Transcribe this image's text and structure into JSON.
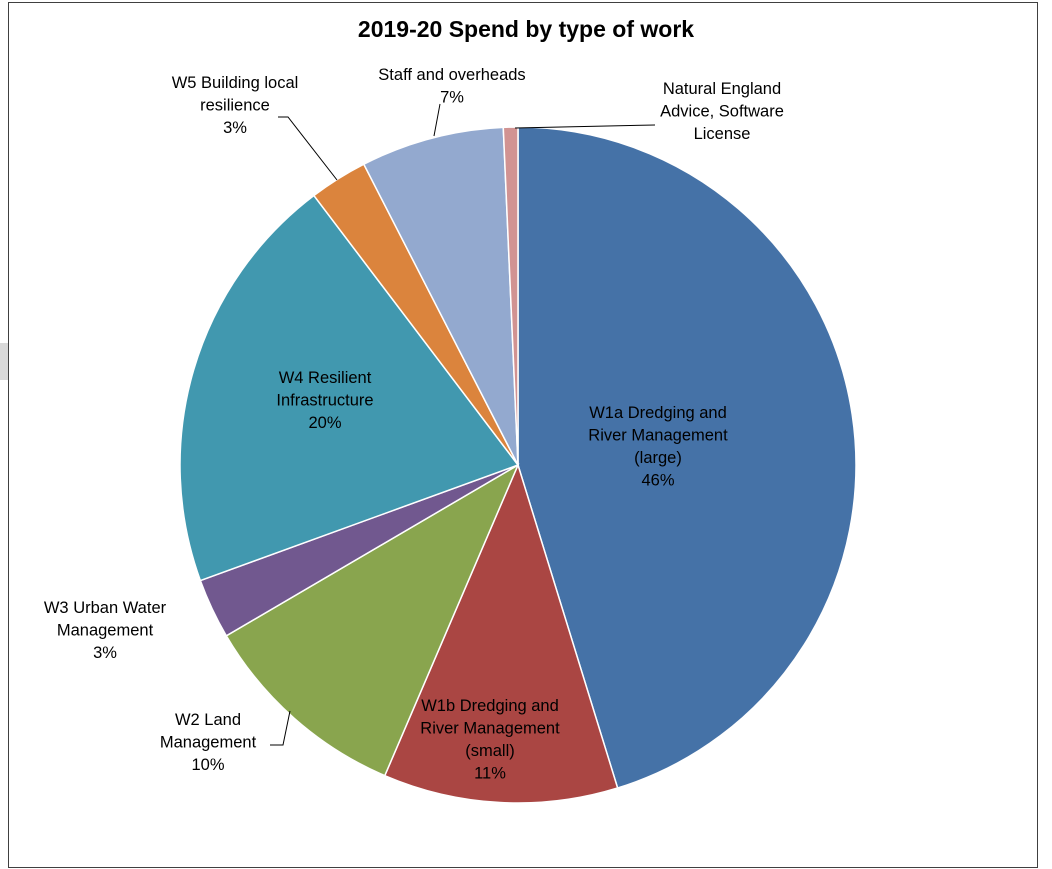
{
  "chart_data": {
    "type": "pie",
    "title": "2019-20 Spend by type of work",
    "slices": [
      {
        "label": [
          "W1a Dredging and",
          "River Management",
          "(large)"
        ],
        "pct": "46%",
        "value": 45.6,
        "color": "#4572A7"
      },
      {
        "label": [
          "W1b Dredging and",
          "River Management",
          "(small)"
        ],
        "pct": "11%",
        "value": 11.3,
        "color": "#AA4643"
      },
      {
        "label": [
          "W2 Land",
          "Management"
        ],
        "pct": "10%",
        "value": 10.2,
        "color": "#89A54E"
      },
      {
        "label": [
          "W3 Urban Water",
          "Management"
        ],
        "pct": "3%",
        "value": 2.9,
        "color": "#71588F"
      },
      {
        "label": [
          "W4 Resilient",
          "Infrastructure"
        ],
        "pct": "20%",
        "value": 20.4,
        "color": "#4198AF"
      },
      {
        "label": [
          "W5 Building local",
          "resilience"
        ],
        "pct": "3%",
        "value": 2.8,
        "color": "#DB843D"
      },
      {
        "label": [
          "Staff and overheads"
        ],
        "pct": "7%",
        "value": 6.9,
        "color": "#93A9CF"
      },
      {
        "label": [
          "Natural England",
          "Advice, Software",
          "License"
        ],
        "pct": "",
        "value": 0.7,
        "color": "#D19392"
      }
    ]
  }
}
